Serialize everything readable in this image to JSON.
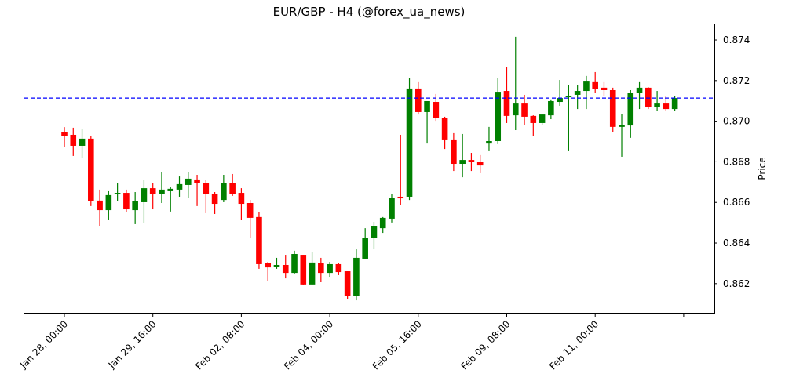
{
  "title": "EUR/GBP - H4 (@forex_ua_news)",
  "chart_data": {
    "type": "candlestick",
    "title": "EUR/GBP - H4 (@forex_ua_news)",
    "xlabel": "",
    "ylabel": "Price",
    "ylim": [
      0.86056,
      0.87485
    ],
    "y_ticks": [
      0.862,
      0.864,
      0.866,
      0.868,
      0.87,
      0.872,
      0.874
    ],
    "y_tick_labels": [
      "0.862",
      "0.864",
      "0.866",
      "0.868",
      "0.870",
      "0.872",
      "0.874"
    ],
    "x_tick_labels": [
      "Jan 28, 00:00",
      "Jan 29, 16:00",
      "Feb 02, 08:00",
      "Feb 04, 00:00",
      "Feb 05, 16:00",
      "Feb 09, 08:00",
      "Feb 11, 00:00",
      ""
    ],
    "x_tick_indices": [
      0,
      10,
      20,
      30,
      40,
      50,
      60,
      70
    ],
    "grid": false,
    "reference_line": {
      "value": 0.87114,
      "style": "dashed",
      "color": "#0000ff"
    },
    "up_color": "#008000",
    "down_color": "#ff0000",
    "candles": [
      {
        "o": 0.86948,
        "h": 0.86971,
        "l": 0.86875,
        "c": 0.86929
      },
      {
        "o": 0.86933,
        "h": 0.86968,
        "l": 0.86829,
        "c": 0.86879
      },
      {
        "o": 0.86879,
        "h": 0.8696,
        "l": 0.86817,
        "c": 0.86914
      },
      {
        "o": 0.86914,
        "h": 0.86929,
        "l": 0.86582,
        "c": 0.86605
      },
      {
        "o": 0.86609,
        "h": 0.86663,
        "l": 0.86485,
        "c": 0.86562
      },
      {
        "o": 0.86562,
        "h": 0.86659,
        "l": 0.86516,
        "c": 0.86636
      },
      {
        "o": 0.8664,
        "h": 0.86694,
        "l": 0.86605,
        "c": 0.86647
      },
      {
        "o": 0.86647,
        "h": 0.86663,
        "l": 0.86551,
        "c": 0.86566
      },
      {
        "o": 0.86562,
        "h": 0.86651,
        "l": 0.86493,
        "c": 0.86605
      },
      {
        "o": 0.86601,
        "h": 0.86709,
        "l": 0.86497,
        "c": 0.8667
      },
      {
        "o": 0.8667,
        "h": 0.86697,
        "l": 0.86566,
        "c": 0.8664
      },
      {
        "o": 0.8664,
        "h": 0.86748,
        "l": 0.86597,
        "c": 0.86663
      },
      {
        "o": 0.86659,
        "h": 0.86678,
        "l": 0.86555,
        "c": 0.86667
      },
      {
        "o": 0.86663,
        "h": 0.86728,
        "l": 0.86628,
        "c": 0.8669
      },
      {
        "o": 0.86686,
        "h": 0.86751,
        "l": 0.86624,
        "c": 0.86717
      },
      {
        "o": 0.86713,
        "h": 0.86736,
        "l": 0.86582,
        "c": 0.86697
      },
      {
        "o": 0.86697,
        "h": 0.86709,
        "l": 0.86547,
        "c": 0.86643
      },
      {
        "o": 0.86643,
        "h": 0.86651,
        "l": 0.86543,
        "c": 0.86593
      },
      {
        "o": 0.86612,
        "h": 0.86736,
        "l": 0.86601,
        "c": 0.86697
      },
      {
        "o": 0.86694,
        "h": 0.8674,
        "l": 0.86632,
        "c": 0.86643
      },
      {
        "o": 0.86647,
        "h": 0.8667,
        "l": 0.86512,
        "c": 0.86593
      },
      {
        "o": 0.86597,
        "h": 0.86612,
        "l": 0.86427,
        "c": 0.86524
      },
      {
        "o": 0.86528,
        "h": 0.86551,
        "l": 0.86273,
        "c": 0.86296
      },
      {
        "o": 0.863,
        "h": 0.86307,
        "l": 0.86211,
        "c": 0.8628
      },
      {
        "o": 0.86284,
        "h": 0.86327,
        "l": 0.86273,
        "c": 0.86292
      },
      {
        "o": 0.86292,
        "h": 0.86342,
        "l": 0.86226,
        "c": 0.86253
      },
      {
        "o": 0.86253,
        "h": 0.86362,
        "l": 0.86246,
        "c": 0.86346
      },
      {
        "o": 0.86342,
        "h": 0.86342,
        "l": 0.86192,
        "c": 0.86196
      },
      {
        "o": 0.86196,
        "h": 0.86354,
        "l": 0.86192,
        "c": 0.86304
      },
      {
        "o": 0.863,
        "h": 0.86327,
        "l": 0.86207,
        "c": 0.86253
      },
      {
        "o": 0.86253,
        "h": 0.86307,
        "l": 0.86234,
        "c": 0.86296
      },
      {
        "o": 0.86296,
        "h": 0.863,
        "l": 0.86242,
        "c": 0.86257
      },
      {
        "o": 0.86261,
        "h": 0.86261,
        "l": 0.86122,
        "c": 0.86141
      },
      {
        "o": 0.86141,
        "h": 0.86369,
        "l": 0.86118,
        "c": 0.86327
      },
      {
        "o": 0.86323,
        "h": 0.86473,
        "l": 0.86323,
        "c": 0.86427
      },
      {
        "o": 0.86427,
        "h": 0.86504,
        "l": 0.86369,
        "c": 0.86485
      },
      {
        "o": 0.86473,
        "h": 0.86528,
        "l": 0.8645,
        "c": 0.86524
      },
      {
        "o": 0.8652,
        "h": 0.86643,
        "l": 0.86501,
        "c": 0.86624
      },
      {
        "o": 0.86628,
        "h": 0.86933,
        "l": 0.86589,
        "c": 0.8662
      },
      {
        "o": 0.86628,
        "h": 0.87211,
        "l": 0.86612,
        "c": 0.87161
      },
      {
        "o": 0.87161,
        "h": 0.87196,
        "l": 0.87033,
        "c": 0.87045
      },
      {
        "o": 0.87045,
        "h": 0.87099,
        "l": 0.8689,
        "c": 0.87099
      },
      {
        "o": 0.87095,
        "h": 0.87134,
        "l": 0.87002,
        "c": 0.87014
      },
      {
        "o": 0.87014,
        "h": 0.87022,
        "l": 0.86863,
        "c": 0.8691
      },
      {
        "o": 0.8691,
        "h": 0.86941,
        "l": 0.86755,
        "c": 0.8679
      },
      {
        "o": 0.8679,
        "h": 0.86937,
        "l": 0.86724,
        "c": 0.86809
      },
      {
        "o": 0.86809,
        "h": 0.86844,
        "l": 0.86755,
        "c": 0.86798
      },
      {
        "o": 0.86798,
        "h": 0.86833,
        "l": 0.86744,
        "c": 0.86782
      },
      {
        "o": 0.8689,
        "h": 0.86972,
        "l": 0.86856,
        "c": 0.86902
      },
      {
        "o": 0.86902,
        "h": 0.87211,
        "l": 0.86887,
        "c": 0.87145
      },
      {
        "o": 0.87149,
        "h": 0.87265,
        "l": 0.86991,
        "c": 0.87026
      },
      {
        "o": 0.87029,
        "h": 0.87416,
        "l": 0.86956,
        "c": 0.87087
      },
      {
        "o": 0.87087,
        "h": 0.8713,
        "l": 0.86983,
        "c": 0.87022
      },
      {
        "o": 0.87026,
        "h": 0.87029,
        "l": 0.86929,
        "c": 0.86991
      },
      {
        "o": 0.86991,
        "h": 0.87037,
        "l": 0.86983,
        "c": 0.87033
      },
      {
        "o": 0.87029,
        "h": 0.87107,
        "l": 0.8701,
        "c": 0.87099
      },
      {
        "o": 0.87095,
        "h": 0.87203,
        "l": 0.87076,
        "c": 0.87114
      },
      {
        "o": 0.87118,
        "h": 0.8718,
        "l": 0.86856,
        "c": 0.87126
      },
      {
        "o": 0.8713,
        "h": 0.8718,
        "l": 0.8706,
        "c": 0.87149
      },
      {
        "o": 0.87149,
        "h": 0.87223,
        "l": 0.8706,
        "c": 0.87199
      },
      {
        "o": 0.87196,
        "h": 0.87242,
        "l": 0.87141,
        "c": 0.87157
      },
      {
        "o": 0.87165,
        "h": 0.87196,
        "l": 0.87122,
        "c": 0.87153
      },
      {
        "o": 0.87153,
        "h": 0.87165,
        "l": 0.86945,
        "c": 0.86972
      },
      {
        "o": 0.86972,
        "h": 0.87037,
        "l": 0.86825,
        "c": 0.86983
      },
      {
        "o": 0.86979,
        "h": 0.87153,
        "l": 0.86918,
        "c": 0.87138
      },
      {
        "o": 0.87138,
        "h": 0.87196,
        "l": 0.8706,
        "c": 0.87165
      },
      {
        "o": 0.87165,
        "h": 0.87168,
        "l": 0.8706,
        "c": 0.87068
      },
      {
        "o": 0.87068,
        "h": 0.87149,
        "l": 0.87049,
        "c": 0.87087
      },
      {
        "o": 0.87087,
        "h": 0.87122,
        "l": 0.87049,
        "c": 0.8706
      },
      {
        "o": 0.8706,
        "h": 0.87126,
        "l": 0.87049,
        "c": 0.87114
      }
    ]
  }
}
